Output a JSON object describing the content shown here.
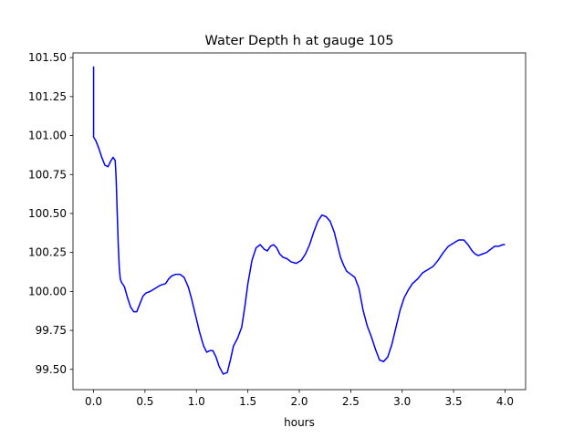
{
  "chart_data": {
    "type": "line",
    "title": "Water Depth h at gauge 105",
    "xlabel": "hours",
    "ylabel": "",
    "xlim": [
      -0.2,
      4.2
    ],
    "ylim": [
      99.37,
      101.53
    ],
    "xticks": [
      0.0,
      0.5,
      1.0,
      1.5,
      2.0,
      2.5,
      3.0,
      3.5,
      4.0
    ],
    "xtick_labels": [
      "0.0",
      "0.5",
      "1.0",
      "1.5",
      "2.0",
      "2.5",
      "3.0",
      "3.5",
      "4.0"
    ],
    "yticks": [
      99.5,
      99.75,
      100.0,
      100.25,
      100.5,
      100.75,
      101.0,
      101.25,
      101.5
    ],
    "ytick_labels": [
      "99.50",
      "99.75",
      "100.00",
      "100.25",
      "100.50",
      "100.75",
      "101.00",
      "101.25",
      "101.50"
    ],
    "grid": false,
    "series": [
      {
        "color": "#0000ff",
        "x": [
          0.0,
          0.0,
          0.0,
          0.02,
          0.05,
          0.08,
          0.11,
          0.14,
          0.17,
          0.19,
          0.21,
          0.22,
          0.23,
          0.24,
          0.25,
          0.26,
          0.27,
          0.3,
          0.33,
          0.36,
          0.39,
          0.42,
          0.45,
          0.48,
          0.51,
          0.55,
          0.6,
          0.65,
          0.7,
          0.73,
          0.76,
          0.8,
          0.84,
          0.88,
          0.92,
          0.95,
          0.99,
          1.03,
          1.07,
          1.1,
          1.13,
          1.16,
          1.19,
          1.22,
          1.26,
          1.3,
          1.33,
          1.36,
          1.4,
          1.44,
          1.47,
          1.5,
          1.54,
          1.58,
          1.62,
          1.66,
          1.69,
          1.72,
          1.75,
          1.78,
          1.81,
          1.84,
          1.88,
          1.92,
          1.97,
          2.02,
          2.06,
          2.1,
          2.14,
          2.18,
          2.22,
          2.26,
          2.3,
          2.34,
          2.37,
          2.4,
          2.43,
          2.46,
          2.5,
          2.54,
          2.58,
          2.62,
          2.66,
          2.7,
          2.74,
          2.78,
          2.82,
          2.86,
          2.9,
          2.94,
          2.98,
          3.02,
          3.06,
          3.1,
          3.15,
          3.2,
          3.25,
          3.3,
          3.35,
          3.4,
          3.45,
          3.5,
          3.55,
          3.6,
          3.64,
          3.68,
          3.71,
          3.74,
          3.78,
          3.82,
          3.86,
          3.9,
          3.94,
          3.98,
          4.0
        ],
        "y": [
          100.99,
          101.44,
          100.99,
          100.97,
          100.92,
          100.86,
          100.81,
          100.8,
          100.84,
          100.86,
          100.84,
          100.72,
          100.5,
          100.3,
          100.15,
          100.08,
          100.06,
          100.03,
          99.96,
          99.9,
          99.87,
          99.87,
          99.92,
          99.97,
          99.99,
          100.0,
          100.02,
          100.04,
          100.05,
          100.08,
          100.1,
          100.11,
          100.11,
          100.09,
          100.03,
          99.96,
          99.85,
          99.74,
          99.65,
          99.61,
          99.62,
          99.62,
          99.58,
          99.52,
          99.47,
          99.48,
          99.56,
          99.65,
          99.7,
          99.77,
          99.9,
          100.05,
          100.2,
          100.28,
          100.3,
          100.27,
          100.26,
          100.29,
          100.3,
          100.28,
          100.24,
          100.22,
          100.21,
          100.19,
          100.18,
          100.2,
          100.24,
          100.3,
          100.38,
          100.45,
          100.49,
          100.48,
          100.45,
          100.38,
          100.3,
          100.22,
          100.17,
          100.13,
          100.11,
          100.09,
          100.02,
          99.88,
          99.78,
          99.71,
          99.63,
          99.56,
          99.55,
          99.58,
          99.66,
          99.77,
          99.88,
          99.96,
          100.01,
          100.05,
          100.08,
          100.12,
          100.14,
          100.16,
          100.2,
          100.25,
          100.29,
          100.31,
          100.33,
          100.33,
          100.3,
          100.26,
          100.24,
          100.23,
          100.24,
          100.25,
          100.27,
          100.29,
          100.29,
          100.3,
          100.3
        ]
      }
    ]
  }
}
